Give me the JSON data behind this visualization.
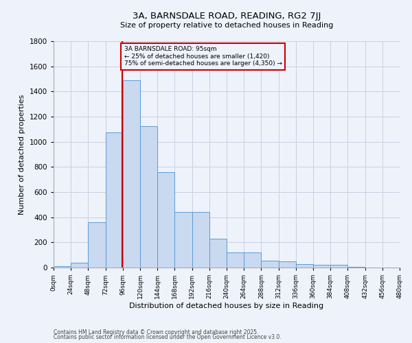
{
  "title": "3A, BARNSDALE ROAD, READING, RG2 7JJ",
  "subtitle": "Size of property relative to detached houses in Reading",
  "xlabel": "Distribution of detached houses by size in Reading",
  "ylabel": "Number of detached properties",
  "footnote1": "Contains HM Land Registry data © Crown copyright and database right 2025.",
  "footnote2": "Contains public sector information licensed under the Open Government Licence v3.0.",
  "bin_labels": [
    "0sqm",
    "24sqm",
    "48sqm",
    "72sqm",
    "96sqm",
    "120sqm",
    "144sqm",
    "168sqm",
    "192sqm",
    "216sqm",
    "240sqm",
    "264sqm",
    "288sqm",
    "312sqm",
    "336sqm",
    "360sqm",
    "384sqm",
    "408sqm",
    "432sqm",
    "456sqm",
    "480sqm"
  ],
  "bar_values": [
    10,
    40,
    360,
    1075,
    1490,
    1125,
    760,
    440,
    440,
    230,
    120,
    120,
    55,
    50,
    30,
    20,
    20,
    5,
    2,
    1,
    0
  ],
  "bin_edges": [
    0,
    24,
    48,
    72,
    96,
    120,
    144,
    168,
    192,
    216,
    240,
    264,
    288,
    312,
    336,
    360,
    384,
    408,
    432,
    456,
    480
  ],
  "property_size": 95,
  "property_label": "3A BARNSDALE ROAD: 95sqm",
  "pct_smaller": "25% of detached houses are smaller (1,420)",
  "pct_larger": "75% of semi-detached houses are larger (4,350)",
  "bar_color": "#c9d9f0",
  "bar_edge_color": "#5b9bd5",
  "vline_color": "#cc0000",
  "annotation_box_color": "#cc0000",
  "background_color": "#eef2fb",
  "grid_color": "#c8d0e0",
  "ylim": [
    0,
    1800
  ],
  "yticks": [
    0,
    200,
    400,
    600,
    800,
    1000,
    1200,
    1400,
    1600,
    1800
  ]
}
